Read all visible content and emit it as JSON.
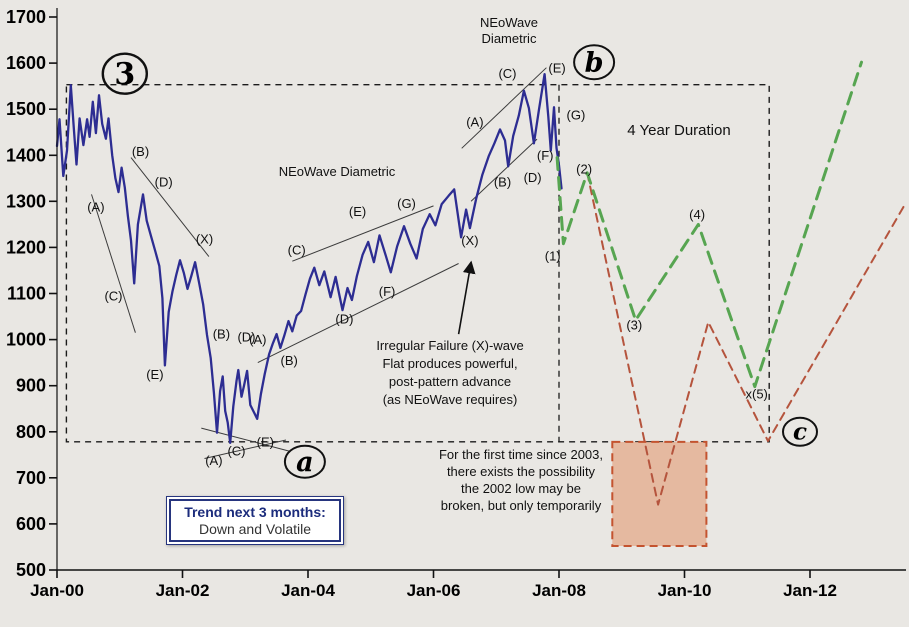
{
  "annotations": {
    "neowave_top": [
      "NEoWave",
      "Diametric"
    ],
    "neowave_mid": "NEoWave Diametric",
    "duration": "4 Year Duration",
    "irregular": [
      "Irregular Failure (X)-wave",
      "Flat produces powerful,",
      "post-pattern advance",
      "(as NEoWave requires)"
    ],
    "possibility": [
      "For the first time since 2003,",
      "there exists the possibility",
      "the 2002 low may be",
      "broken, but only temporarily"
    ],
    "trend_box": {
      "title": "Trend next 3 months:",
      "value": "Down and Volatile"
    }
  },
  "chart_data": {
    "type": "line",
    "x_axis": {
      "ticks": [
        {
          "label": "Jan-00",
          "year": 2000
        },
        {
          "label": "Jan-02",
          "year": 2002
        },
        {
          "label": "Jan-04",
          "year": 2004
        },
        {
          "label": "Jan-06",
          "year": 2006
        },
        {
          "label": "Jan-08",
          "year": 2008
        },
        {
          "label": "Jan-10",
          "year": 2010
        },
        {
          "label": "Jan-12",
          "year": 2012
        }
      ],
      "range": [
        1999.9,
        2013.6
      ]
    },
    "y_axis": {
      "ticks": [
        1700,
        1600,
        1500,
        1400,
        1300,
        1200,
        1100,
        1000,
        900,
        800,
        700,
        600,
        500
      ],
      "range": [
        500,
        1700
      ],
      "tick_step": 100
    },
    "series": [
      {
        "name": "sp500-price",
        "color": "#2d2d92",
        "width": 2.3,
        "points": [
          [
            2000.0,
            1420
          ],
          [
            2000.04,
            1478
          ],
          [
            2000.1,
            1355
          ],
          [
            2000.16,
            1410
          ],
          [
            2000.22,
            1552
          ],
          [
            2000.27,
            1456
          ],
          [
            2000.31,
            1380
          ],
          [
            2000.36,
            1480
          ],
          [
            2000.42,
            1422
          ],
          [
            2000.48,
            1478
          ],
          [
            2000.52,
            1440
          ],
          [
            2000.57,
            1516
          ],
          [
            2000.62,
            1448
          ],
          [
            2000.67,
            1530
          ],
          [
            2000.72,
            1468
          ],
          [
            2000.78,
            1436
          ],
          [
            2000.82,
            1480
          ],
          [
            2000.88,
            1400
          ],
          [
            2000.93,
            1350
          ],
          [
            2000.98,
            1320
          ],
          [
            2001.03,
            1373
          ],
          [
            2001.08,
            1330
          ],
          [
            2001.13,
            1268
          ],
          [
            2001.18,
            1215
          ],
          [
            2001.23,
            1122
          ],
          [
            2001.29,
            1250
          ],
          [
            2001.37,
            1315
          ],
          [
            2001.43,
            1258
          ],
          [
            2001.5,
            1224
          ],
          [
            2001.57,
            1190
          ],
          [
            2001.63,
            1160
          ],
          [
            2001.68,
            1090
          ],
          [
            2001.72,
            944
          ],
          [
            2001.78,
            1060
          ],
          [
            2001.84,
            1105
          ],
          [
            2001.9,
            1140
          ],
          [
            2001.96,
            1172
          ],
          [
            2002.02,
            1145
          ],
          [
            2002.08,
            1110
          ],
          [
            2002.14,
            1138
          ],
          [
            2002.2,
            1168
          ],
          [
            2002.27,
            1120
          ],
          [
            2002.33,
            1076
          ],
          [
            2002.39,
            1010
          ],
          [
            2002.45,
            960
          ],
          [
            2002.5,
            885
          ],
          [
            2002.55,
            798
          ],
          [
            2002.6,
            888
          ],
          [
            2002.64,
            920
          ],
          [
            2002.68,
            845
          ],
          [
            2002.72,
            820
          ],
          [
            2002.76,
            776
          ],
          [
            2002.81,
            855
          ],
          [
            2002.86,
            910
          ],
          [
            2002.89,
            934
          ],
          [
            2002.94,
            876
          ],
          [
            2002.98,
            900
          ],
          [
            2003.03,
            932
          ],
          [
            2003.08,
            858
          ],
          [
            2003.14,
            842
          ],
          [
            2003.19,
            828
          ],
          [
            2003.25,
            882
          ],
          [
            2003.31,
            925
          ],
          [
            2003.38,
            968
          ],
          [
            2003.44,
            992
          ],
          [
            2003.5,
            1012
          ],
          [
            2003.56,
            982
          ],
          [
            2003.62,
            1008
          ],
          [
            2003.69,
            1040
          ],
          [
            2003.75,
            1018
          ],
          [
            2003.82,
            1052
          ],
          [
            2003.89,
            1062
          ],
          [
            2003.96,
            1098
          ],
          [
            2004.03,
            1132
          ],
          [
            2004.1,
            1156
          ],
          [
            2004.18,
            1118
          ],
          [
            2004.26,
            1148
          ],
          [
            2004.36,
            1092
          ],
          [
            2004.44,
            1136
          ],
          [
            2004.55,
            1064
          ],
          [
            2004.63,
            1112
          ],
          [
            2004.7,
            1086
          ],
          [
            2004.78,
            1138
          ],
          [
            2004.87,
            1184
          ],
          [
            2004.96,
            1212
          ],
          [
            2005.05,
            1168
          ],
          [
            2005.14,
            1226
          ],
          [
            2005.24,
            1182
          ],
          [
            2005.32,
            1146
          ],
          [
            2005.42,
            1202
          ],
          [
            2005.53,
            1246
          ],
          [
            2005.63,
            1208
          ],
          [
            2005.73,
            1176
          ],
          [
            2005.83,
            1240
          ],
          [
            2005.94,
            1272
          ],
          [
            2006.03,
            1248
          ],
          [
            2006.13,
            1294
          ],
          [
            2006.24,
            1312
          ],
          [
            2006.33,
            1326
          ],
          [
            2006.44,
            1222
          ],
          [
            2006.52,
            1282
          ],
          [
            2006.58,
            1242
          ],
          [
            2006.68,
            1306
          ],
          [
            2006.78,
            1358
          ],
          [
            2006.88,
            1398
          ],
          [
            2006.97,
            1426
          ],
          [
            2007.06,
            1456
          ],
          [
            2007.14,
            1432
          ],
          [
            2007.19,
            1376
          ],
          [
            2007.27,
            1442
          ],
          [
            2007.36,
            1486
          ],
          [
            2007.44,
            1540
          ],
          [
            2007.52,
            1502
          ],
          [
            2007.6,
            1426
          ],
          [
            2007.68,
            1498
          ],
          [
            2007.77,
            1576
          ],
          [
            2007.83,
            1484
          ],
          [
            2007.87,
            1410
          ],
          [
            2007.92,
            1504
          ],
          [
            2007.96,
            1416
          ],
          [
            2008.0,
            1378
          ],
          [
            2008.04,
            1328
          ]
        ]
      },
      {
        "name": "bearish-projection",
        "color": "#b5543d",
        "width": 2,
        "dash": "8 6",
        "points": [
          [
            2008.45,
            1362
          ],
          [
            2009.58,
            642
          ],
          [
            2010.38,
            1038
          ],
          [
            2011.33,
            780
          ],
          [
            2013.52,
            1295
          ]
        ]
      },
      {
        "name": "bullish-projection",
        "color": "#57a551",
        "width": 3,
        "dash": "12 8",
        "points": [
          [
            2007.97,
            1395
          ],
          [
            2008.07,
            1208
          ],
          [
            2008.45,
            1362
          ],
          [
            2009.22,
            1042
          ],
          [
            2010.22,
            1250
          ],
          [
            2011.12,
            898
          ],
          [
            2012.82,
            1602
          ]
        ]
      }
    ],
    "trendlines": [
      [
        [
          2000.55,
          1315
        ],
        [
          2001.25,
          1015
        ]
      ],
      [
        [
          2001.18,
          1395
        ],
        [
          2002.42,
          1180
        ]
      ],
      [
        [
          2002.3,
          808
        ],
        [
          2003.7,
          758
        ]
      ],
      [
        [
          2002.35,
          742
        ],
        [
          2003.65,
          782
        ]
      ],
      [
        [
          2003.2,
          950
        ],
        [
          2006.4,
          1165
        ]
      ],
      [
        [
          2003.75,
          1170
        ],
        [
          2006.0,
          1290
        ]
      ],
      [
        [
          2006.45,
          1415
        ],
        [
          2007.8,
          1590
        ]
      ],
      [
        [
          2006.6,
          1300
        ],
        [
          2007.65,
          1435
        ]
      ]
    ],
    "boxes": {
      "duration_box": {
        "x1": 2000.15,
        "x2": 2011.35,
        "y1": 778,
        "y2": 1553
      },
      "vline_year": 2008.0,
      "shaded_box": {
        "x1": 2008.85,
        "x2": 2010.35,
        "y1": 552,
        "y2": 778,
        "fill": "#e4ae8f",
        "border": "#c4532f"
      }
    },
    "arrow": {
      "from": [
        2006.4,
        1012
      ],
      "to": [
        2006.6,
        1168
      ]
    },
    "wave_labels": [
      {
        "text": "(A)",
        "year": 2000.62,
        "value": 1278
      },
      {
        "text": "(B)",
        "year": 2001.33,
        "value": 1398
      },
      {
        "text": "(C)",
        "year": 2000.9,
        "value": 1085
      },
      {
        "text": "(D)",
        "year": 2001.7,
        "value": 1332
      },
      {
        "text": "(E)",
        "year": 2001.56,
        "value": 915
      },
      {
        "text": "(X)",
        "year": 2002.35,
        "value": 1208
      },
      {
        "text": "(B)",
        "year": 2002.62,
        "value": 1002
      },
      {
        "text": "(D)",
        "year": 2003.02,
        "value": 996
      },
      {
        "text": "(A)",
        "year": 2002.5,
        "value": 728
      },
      {
        "text": "(C)",
        "year": 2002.86,
        "value": 748
      },
      {
        "text": "(E)",
        "year": 2003.32,
        "value": 768
      },
      {
        "text": "(A)",
        "year": 2003.2,
        "value": 990
      },
      {
        "text": "(B)",
        "year": 2003.7,
        "value": 945
      },
      {
        "text": "(C)",
        "year": 2003.82,
        "value": 1185
      },
      {
        "text": "(D)",
        "year": 2004.58,
        "value": 1035
      },
      {
        "text": "(E)",
        "year": 2004.79,
        "value": 1268
      },
      {
        "text": "(F)",
        "year": 2005.26,
        "value": 1095
      },
      {
        "text": "(G)",
        "year": 2005.57,
        "value": 1285
      },
      {
        "text": "(X)",
        "year": 2006.58,
        "value": 1205
      },
      {
        "text": "(A)",
        "year": 2006.66,
        "value": 1462
      },
      {
        "text": "(B)",
        "year": 2007.1,
        "value": 1332
      },
      {
        "text": "(C)",
        "year": 2007.18,
        "value": 1568
      },
      {
        "text": "(D)",
        "year": 2007.58,
        "value": 1342
      },
      {
        "text": "(F)",
        "year": 2007.78,
        "value": 1390
      },
      {
        "text": "(E)",
        "year": 2007.97,
        "value": 1580
      },
      {
        "text": "(G)",
        "year": 2008.27,
        "value": 1478
      },
      {
        "text": "(1)",
        "year": 2007.9,
        "value": 1172
      },
      {
        "text": "(2)",
        "year": 2008.4,
        "value": 1360
      },
      {
        "text": "(3)",
        "year": 2009.2,
        "value": 1022
      },
      {
        "text": "(4)",
        "year": 2010.2,
        "value": 1262
      },
      {
        "text": "x(5)",
        "year": 2011.15,
        "value": 872
      }
    ],
    "circle_labels": [
      {
        "name": "3",
        "text": "3",
        "year": 2001.08,
        "value": 1577,
        "rx": 22,
        "ry": 20,
        "font": 30,
        "italic": false,
        "sw": 2.4
      },
      {
        "name": "b",
        "text": "b",
        "year": 2008.56,
        "value": 1602,
        "rx": 20,
        "ry": 17,
        "font": 27,
        "italic": true,
        "sw": 2
      },
      {
        "name": "a",
        "text": "a",
        "year": 2003.95,
        "value": 735,
        "rx": 20,
        "ry": 16,
        "font": 27,
        "italic": true,
        "sw": 2
      },
      {
        "name": "c",
        "text": "c",
        "year": 2011.84,
        "value": 800,
        "rx": 17,
        "ry": 14,
        "font": 23,
        "italic": true,
        "sw": 2
      }
    ]
  }
}
